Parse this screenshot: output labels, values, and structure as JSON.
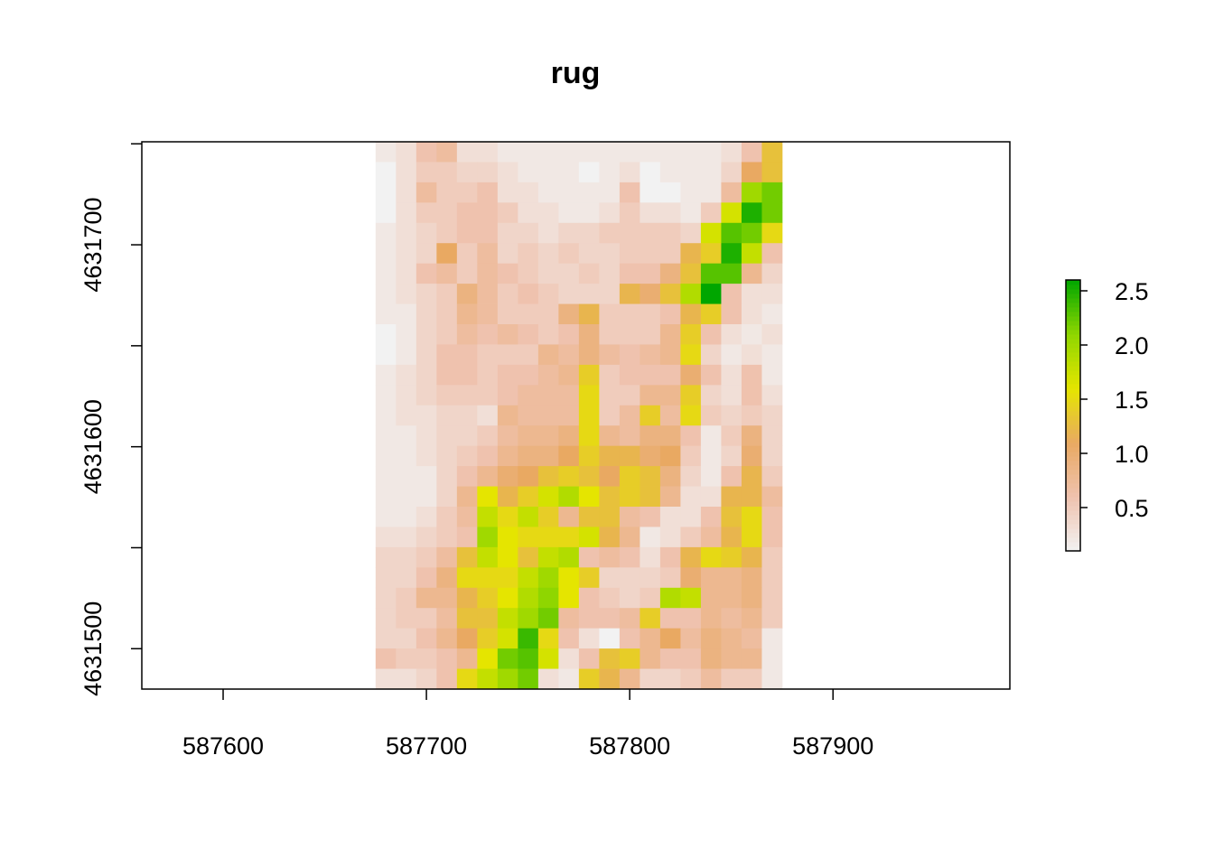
{
  "chart_data": {
    "type": "heatmap",
    "title": "rug",
    "xlabel": "",
    "ylabel": "",
    "xlim": [
      587560,
      587987
    ],
    "ylim": [
      4631480,
      4631751
    ],
    "x_ticks": [
      587600,
      587700,
      587800,
      587900
    ],
    "x_tick_labels": [
      "587600",
      "587700",
      "587800",
      "587900"
    ],
    "y_ticks": [
      4631500,
      4631550,
      4631600,
      4631650,
      4631700,
      4631750
    ],
    "y_tick_labels": [
      "4631500",
      "",
      "4631600",
      "",
      "4631700",
      ""
    ],
    "raster": {
      "x_min": 587675,
      "x_max": 587875,
      "y_min": 4631480,
      "y_max": 4631751,
      "ncol": 20,
      "nrow": 27,
      "cell_size": 10,
      "rows_top_to_bottom": [
        [
          0.2,
          0.3,
          0.6,
          0.7,
          0.3,
          0.3,
          0.2,
          0.2,
          0.2,
          0.2,
          0.2,
          0.2,
          0.2,
          0.2,
          0.2,
          0.2,
          0.2,
          0.3,
          0.6,
          1.3
        ],
        [
          0.1,
          0.3,
          0.5,
          0.5,
          0.4,
          0.4,
          0.3,
          0.2,
          0.2,
          0.2,
          0.1,
          0.2,
          0.3,
          0.1,
          0.2,
          0.2,
          0.2,
          0.4,
          1.1,
          1.3
        ],
        [
          0.1,
          0.3,
          0.7,
          0.5,
          0.5,
          0.6,
          0.3,
          0.3,
          0.2,
          0.2,
          0.2,
          0.2,
          0.6,
          0.1,
          0.1,
          0.2,
          0.2,
          0.7,
          2.0,
          2.2
        ],
        [
          0.1,
          0.3,
          0.5,
          0.5,
          0.6,
          0.6,
          0.5,
          0.3,
          0.3,
          0.2,
          0.2,
          0.3,
          0.5,
          0.3,
          0.3,
          0.2,
          0.5,
          1.7,
          2.5,
          2.2
        ],
        [
          0.2,
          0.3,
          0.4,
          0.5,
          0.6,
          0.6,
          0.4,
          0.4,
          0.3,
          0.4,
          0.4,
          0.5,
          0.5,
          0.5,
          0.5,
          0.4,
          1.7,
          2.3,
          2.2,
          1.5
        ],
        [
          0.2,
          0.3,
          0.4,
          1.1,
          0.5,
          0.7,
          0.4,
          0.5,
          0.4,
          0.5,
          0.4,
          0.4,
          0.5,
          0.5,
          0.5,
          1.2,
          1.4,
          2.5,
          1.8,
          0.6
        ],
        [
          0.2,
          0.3,
          0.6,
          0.7,
          0.5,
          0.7,
          0.6,
          0.5,
          0.4,
          0.4,
          0.5,
          0.4,
          0.6,
          0.6,
          0.9,
          1.3,
          2.3,
          2.3,
          0.8,
          0.4
        ],
        [
          0.2,
          0.3,
          0.4,
          0.5,
          0.9,
          0.7,
          0.5,
          0.6,
          0.5,
          0.4,
          0.4,
          0.4,
          1.2,
          1.0,
          1.3,
          1.9,
          2.6,
          0.6,
          0.3,
          0.3
        ],
        [
          0.2,
          0.2,
          0.4,
          0.5,
          0.8,
          0.7,
          0.5,
          0.5,
          0.5,
          0.9,
          1.2,
          0.5,
          0.5,
          0.5,
          0.6,
          1.2,
          1.4,
          0.6,
          0.3,
          0.2
        ],
        [
          0.1,
          0.2,
          0.4,
          0.5,
          0.7,
          0.6,
          0.7,
          0.6,
          0.5,
          0.6,
          0.9,
          0.5,
          0.5,
          0.5,
          0.8,
          1.4,
          0.6,
          0.3,
          0.2,
          0.3
        ],
        [
          0.1,
          0.2,
          0.4,
          0.6,
          0.6,
          0.5,
          0.5,
          0.5,
          0.8,
          0.7,
          0.9,
          0.7,
          0.6,
          0.7,
          0.8,
          1.5,
          0.4,
          0.2,
          0.3,
          0.2
        ],
        [
          0.2,
          0.3,
          0.4,
          0.6,
          0.6,
          0.5,
          0.6,
          0.6,
          0.7,
          0.8,
          1.4,
          0.5,
          0.6,
          0.6,
          0.6,
          1.0,
          0.6,
          0.3,
          0.6,
          0.2
        ],
        [
          0.2,
          0.3,
          0.4,
          0.5,
          0.5,
          0.5,
          0.6,
          0.7,
          0.7,
          0.7,
          1.5,
          0.5,
          0.5,
          0.8,
          0.8,
          1.4,
          0.4,
          0.3,
          0.6,
          0.3
        ],
        [
          0.2,
          0.3,
          0.3,
          0.4,
          0.4,
          0.3,
          0.8,
          0.7,
          0.7,
          0.7,
          1.5,
          0.5,
          0.7,
          1.4,
          0.7,
          1.5,
          0.5,
          0.4,
          0.5,
          0.4
        ],
        [
          0.2,
          0.2,
          0.3,
          0.4,
          0.4,
          0.5,
          0.7,
          0.8,
          0.8,
          0.9,
          1.5,
          0.8,
          0.7,
          0.9,
          0.9,
          0.6,
          0.2,
          0.5,
          0.9,
          0.4
        ],
        [
          0.2,
          0.2,
          0.3,
          0.4,
          0.5,
          0.6,
          0.8,
          0.9,
          0.9,
          1.1,
          1.4,
          1.2,
          1.2,
          1.0,
          1.1,
          0.5,
          0.2,
          0.4,
          1.0,
          0.4
        ],
        [
          0.2,
          0.2,
          0.2,
          0.4,
          0.6,
          0.8,
          1.0,
          1.1,
          1.3,
          1.4,
          1.3,
          1.1,
          1.4,
          1.3,
          0.9,
          0.4,
          0.2,
          0.6,
          1.2,
          0.5
        ],
        [
          0.2,
          0.2,
          0.2,
          0.4,
          0.8,
          1.6,
          1.2,
          1.4,
          1.7,
          1.9,
          1.6,
          1.3,
          1.4,
          1.3,
          0.8,
          0.3,
          0.3,
          1.2,
          1.2,
          0.7
        ],
        [
          0.2,
          0.2,
          0.3,
          0.5,
          0.7,
          1.8,
          1.5,
          1.8,
          1.4,
          0.8,
          1.3,
          1.3,
          0.7,
          0.6,
          0.3,
          0.3,
          0.6,
          1.3,
          1.5,
          0.6
        ],
        [
          0.3,
          0.3,
          0.4,
          0.5,
          0.6,
          2.0,
          1.6,
          1.5,
          1.5,
          1.5,
          1.7,
          1.2,
          0.8,
          0.2,
          0.3,
          0.5,
          0.7,
          1.2,
          1.5,
          0.6
        ],
        [
          0.4,
          0.4,
          0.5,
          0.7,
          1.3,
          1.8,
          1.6,
          1.3,
          1.8,
          1.9,
          0.6,
          0.7,
          0.6,
          0.3,
          0.6,
          1.2,
          1.5,
          1.4,
          1.2,
          0.5
        ],
        [
          0.4,
          0.4,
          0.6,
          0.9,
          1.5,
          1.5,
          1.5,
          1.8,
          2.0,
          1.6,
          1.4,
          0.4,
          0.4,
          0.4,
          0.5,
          1.0,
          0.8,
          0.8,
          0.9,
          0.5
        ],
        [
          0.4,
          0.5,
          0.8,
          0.8,
          1.2,
          1.4,
          1.6,
          1.9,
          2.1,
          1.6,
          0.6,
          0.5,
          0.4,
          0.5,
          1.9,
          1.8,
          0.8,
          0.8,
          0.9,
          0.5
        ],
        [
          0.4,
          0.5,
          0.5,
          0.7,
          1.3,
          1.3,
          1.8,
          2.0,
          2.2,
          0.7,
          0.6,
          0.6,
          0.7,
          1.4,
          0.6,
          0.6,
          0.8,
          0.7,
          0.8,
          0.5
        ],
        [
          0.4,
          0.4,
          0.6,
          0.8,
          1.1,
          1.4,
          1.7,
          2.4,
          1.5,
          0.6,
          0.3,
          0.1,
          0.6,
          0.8,
          1.1,
          0.7,
          0.9,
          0.8,
          0.7,
          0.2
        ],
        [
          0.6,
          0.5,
          0.5,
          0.6,
          0.8,
          1.6,
          2.2,
          2.3,
          1.7,
          0.3,
          0.6,
          1.3,
          1.4,
          0.8,
          0.6,
          0.6,
          0.9,
          0.8,
          0.8,
          0.2
        ],
        [
          0.3,
          0.3,
          0.4,
          0.6,
          1.5,
          1.8,
          2.0,
          2.2,
          0.3,
          0.2,
          1.4,
          1.2,
          0.8,
          0.4,
          0.4,
          0.5,
          0.7,
          0.5,
          0.5,
          0.2
        ]
      ]
    },
    "legend": {
      "position": "right",
      "min": 0.1,
      "max": 2.6,
      "ticks": [
        0.5,
        1.0,
        1.5,
        2.0,
        2.5
      ],
      "tick_labels": [
        "0.5",
        "1.0",
        "1.5",
        "2.0",
        "2.5"
      ]
    },
    "colors": {
      "low": "#F2F2F2",
      "q1": "#EFC2AE",
      "q2": "#E9A962",
      "q3": "#E5E500",
      "q4": "#8FD600",
      "high": "#00A600",
      "axis": "#000000"
    }
  }
}
